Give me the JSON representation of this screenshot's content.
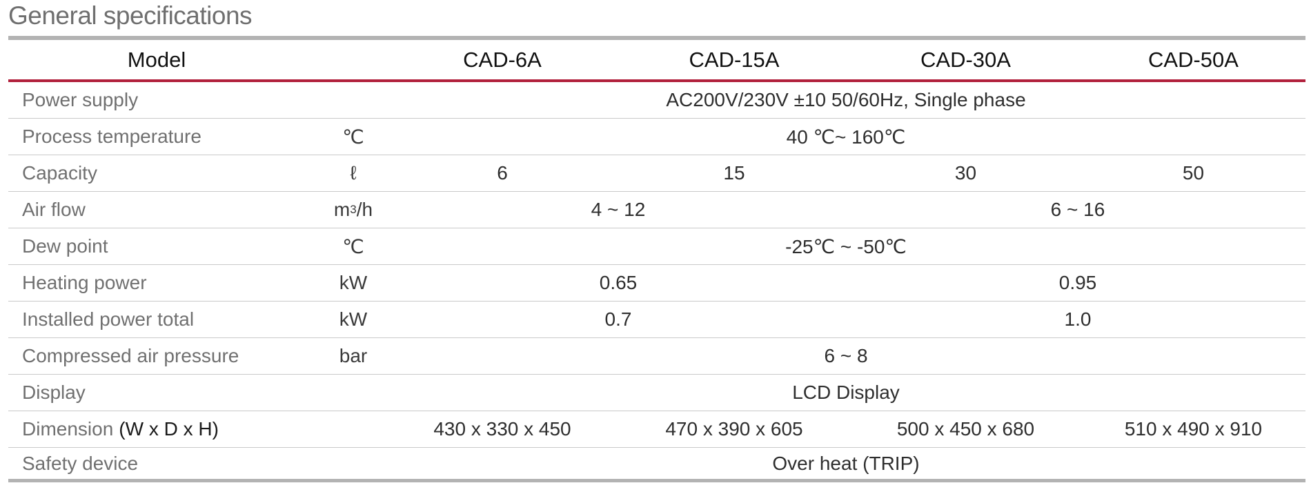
{
  "title": "General specifications",
  "header": {
    "model_label": "Model",
    "models": [
      "CAD-6A",
      "CAD-15A",
      "CAD-30A",
      "CAD-50A"
    ]
  },
  "rows": [
    {
      "label": "Power supply",
      "unit": "",
      "value": "AC200V/230V ±10 50/60Hz, Single phase"
    },
    {
      "label": "Process temperature",
      "unit": "℃",
      "value": "40 ℃~ 160℃"
    },
    {
      "label": "Capacity",
      "unit": "ℓ",
      "values": [
        "6",
        "15",
        "30",
        "50"
      ]
    },
    {
      "label": "Air flow",
      "unit_base": "m",
      "unit_sup": "3",
      "unit_rest": "/h",
      "values": [
        "4 ~ 12",
        "6 ~ 16"
      ]
    },
    {
      "label": "Dew point",
      "unit": "℃",
      "value": "-25℃ ~ -50℃"
    },
    {
      "label": "Heating power",
      "unit": "kW",
      "values": [
        "0.65",
        "0.95"
      ]
    },
    {
      "label": "Installed power total",
      "unit": "kW",
      "values": [
        "0.7",
        "1.0"
      ]
    },
    {
      "label": "Compressed air pressure",
      "unit": "bar",
      "value": "6 ~ 8"
    },
    {
      "label": "Display",
      "unit": "",
      "value": "LCD Display"
    },
    {
      "label": "Dimension",
      "label_suffix": "(W x D x H)",
      "unit": "",
      "values": [
        "430 x 330 x 450",
        "470 x 390 x 605",
        "500 x 450 x 680",
        "510 x 490 x 910"
      ]
    },
    {
      "label": "Safety device",
      "unit": "",
      "value": "Over heat (TRIP)"
    }
  ]
}
